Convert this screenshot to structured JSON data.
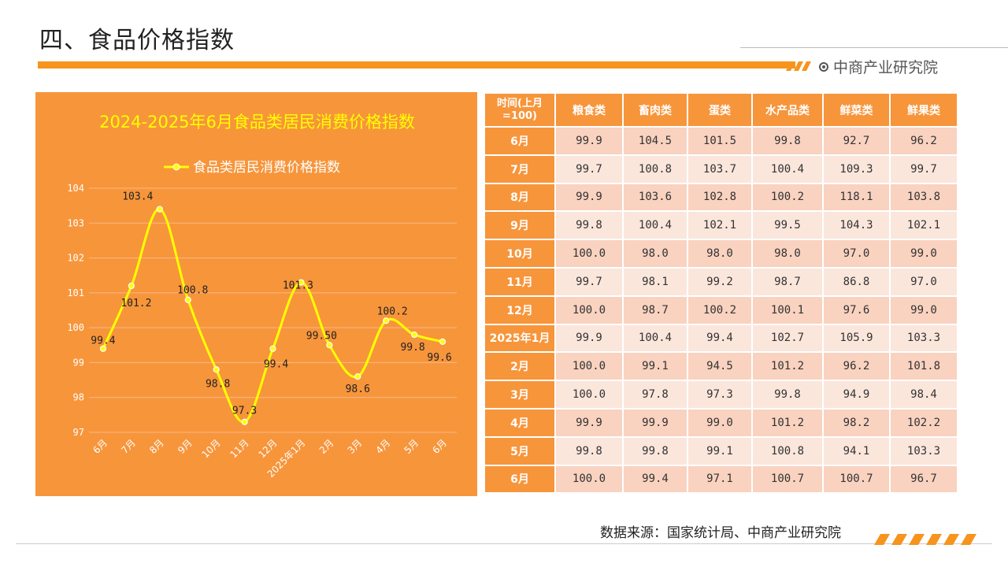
{
  "page_title": "四、食品价格指数",
  "logo_text": "中商产业研究院",
  "source": "数据来源：国家统计局、中商产业研究院",
  "colors": {
    "accent": "#f7941d",
    "panel": "#f7953b",
    "line": "#ffff00",
    "title_text": "#ffff00",
    "row_odd": "#f9d2c0",
    "row_even": "#fbe6dc"
  },
  "chart_data": {
    "type": "line",
    "title": "2024-2025年6月食品类居民消费价格指数",
    "xlabel": "",
    "ylabel": "",
    "categories": [
      "6月",
      "7月",
      "8月",
      "9月",
      "10月",
      "11月",
      "12月",
      "2025年1月",
      "2月",
      "3月",
      "4月",
      "5月",
      "6月"
    ],
    "series": [
      {
        "name": "食品类居民消费价格指数",
        "values": [
          99.4,
          101.2,
          103.4,
          100.8,
          98.8,
          97.3,
          99.4,
          101.3,
          99.5,
          98.6,
          100.2,
          99.8,
          99.6
        ]
      }
    ],
    "data_labels": [
      "99.4",
      "101.2",
      "103.4",
      "100.8",
      "98.8",
      "97.3",
      "99.4",
      "101.3",
      "99.50",
      "98.6",
      "100.2",
      "99.8",
      "99.6"
    ],
    "ylim": [
      97,
      104
    ],
    "yticks": [
      "97",
      "98",
      "99",
      "100",
      "101",
      "102",
      "103",
      "104"
    ],
    "grid": true,
    "legend_position": "top"
  },
  "table": {
    "headers": [
      "时间(上月=100)",
      "粮食类",
      "畜肉类",
      "蛋类",
      "水产品类",
      "鲜菜类",
      "鲜果类"
    ],
    "rows": [
      [
        "6月",
        "99.9",
        "104.5",
        "101.5",
        "99.8",
        "92.7",
        "96.2"
      ],
      [
        "7月",
        "99.7",
        "100.8",
        "103.7",
        "100.4",
        "109.3",
        "99.7"
      ],
      [
        "8月",
        "99.9",
        "103.6",
        "102.8",
        "100.2",
        "118.1",
        "103.8"
      ],
      [
        "9月",
        "99.8",
        "100.4",
        "102.1",
        "99.5",
        "104.3",
        "102.1"
      ],
      [
        "10月",
        "100.0",
        "98.0",
        "98.0",
        "98.0",
        "97.0",
        "99.0"
      ],
      [
        "11月",
        "99.7",
        "98.1",
        "99.2",
        "98.7",
        "86.8",
        "97.0"
      ],
      [
        "12月",
        "100.0",
        "98.7",
        "100.2",
        "100.1",
        "97.6",
        "99.0"
      ],
      [
        "2025年1月",
        "99.9",
        "100.4",
        "99.4",
        "102.7",
        "105.9",
        "103.3"
      ],
      [
        "2月",
        "100.0",
        "99.1",
        "94.5",
        "101.2",
        "96.2",
        "101.8"
      ],
      [
        "3月",
        "100.0",
        "97.8",
        "97.3",
        "99.8",
        "94.9",
        "98.4"
      ],
      [
        "4月",
        "99.9",
        "99.9",
        "99.0",
        "101.2",
        "98.2",
        "102.2"
      ],
      [
        "5月",
        "99.8",
        "99.8",
        "99.1",
        "100.8",
        "94.1",
        "103.3"
      ],
      [
        "6月",
        "100.0",
        "99.4",
        "97.1",
        "100.7",
        "100.7",
        "96.7"
      ]
    ]
  }
}
